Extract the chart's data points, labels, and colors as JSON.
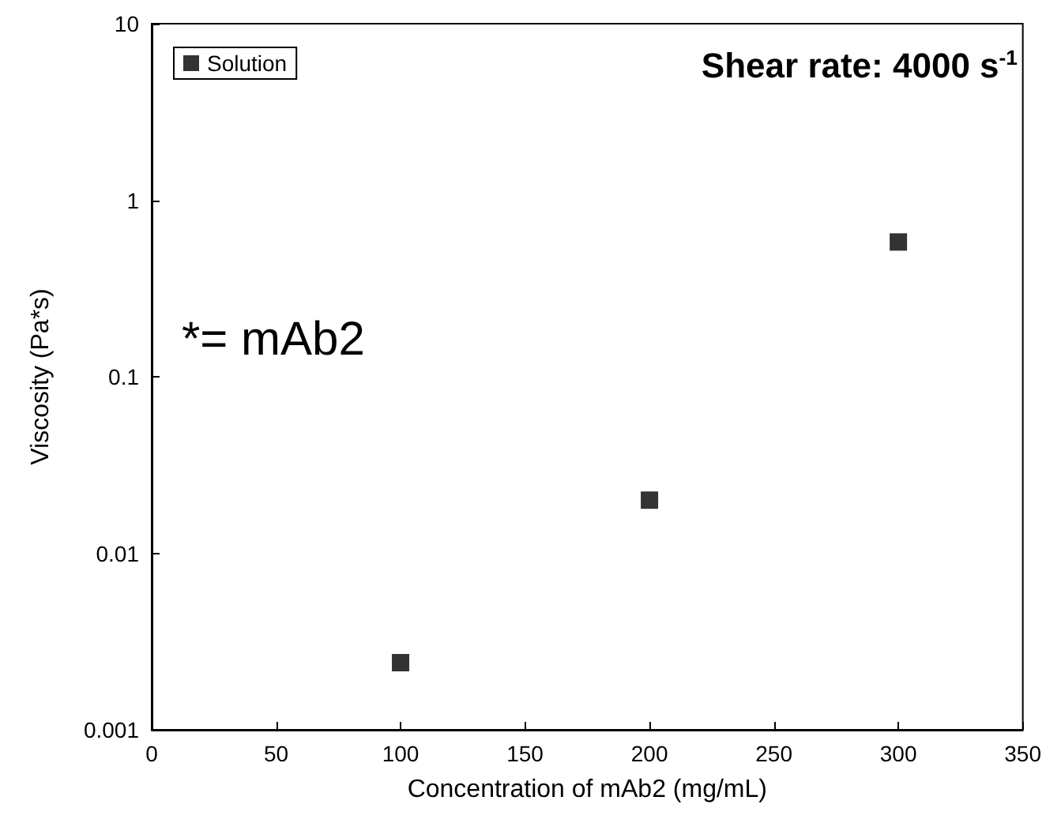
{
  "chart_data": {
    "type": "scatter",
    "xlabel": "Concentration of mAb2 (mg/mL)",
    "ylabel": "Viscosity (Pa*s)",
    "annotations": [
      "Shear rate: 4000 s$^{-1}$",
      "*= mAb2"
    ],
    "x": [
      100,
      200,
      300
    ],
    "series": [
      {
        "name": "Solution",
        "color": "#000000",
        "values": [
          0.0024,
          0.02,
          0.58
        ]
      }
    ],
    "xlim": [
      0,
      350
    ],
    "xticks": [
      0,
      50,
      100,
      150,
      200,
      250,
      300,
      350
    ],
    "ylim": [
      0.001,
      10
    ],
    "yticks": [
      0.001,
      0.01,
      0.1,
      1,
      10
    ],
    "log": "y",
    "grid": false,
    "legend": "top left",
    "marker": "square"
  }
}
